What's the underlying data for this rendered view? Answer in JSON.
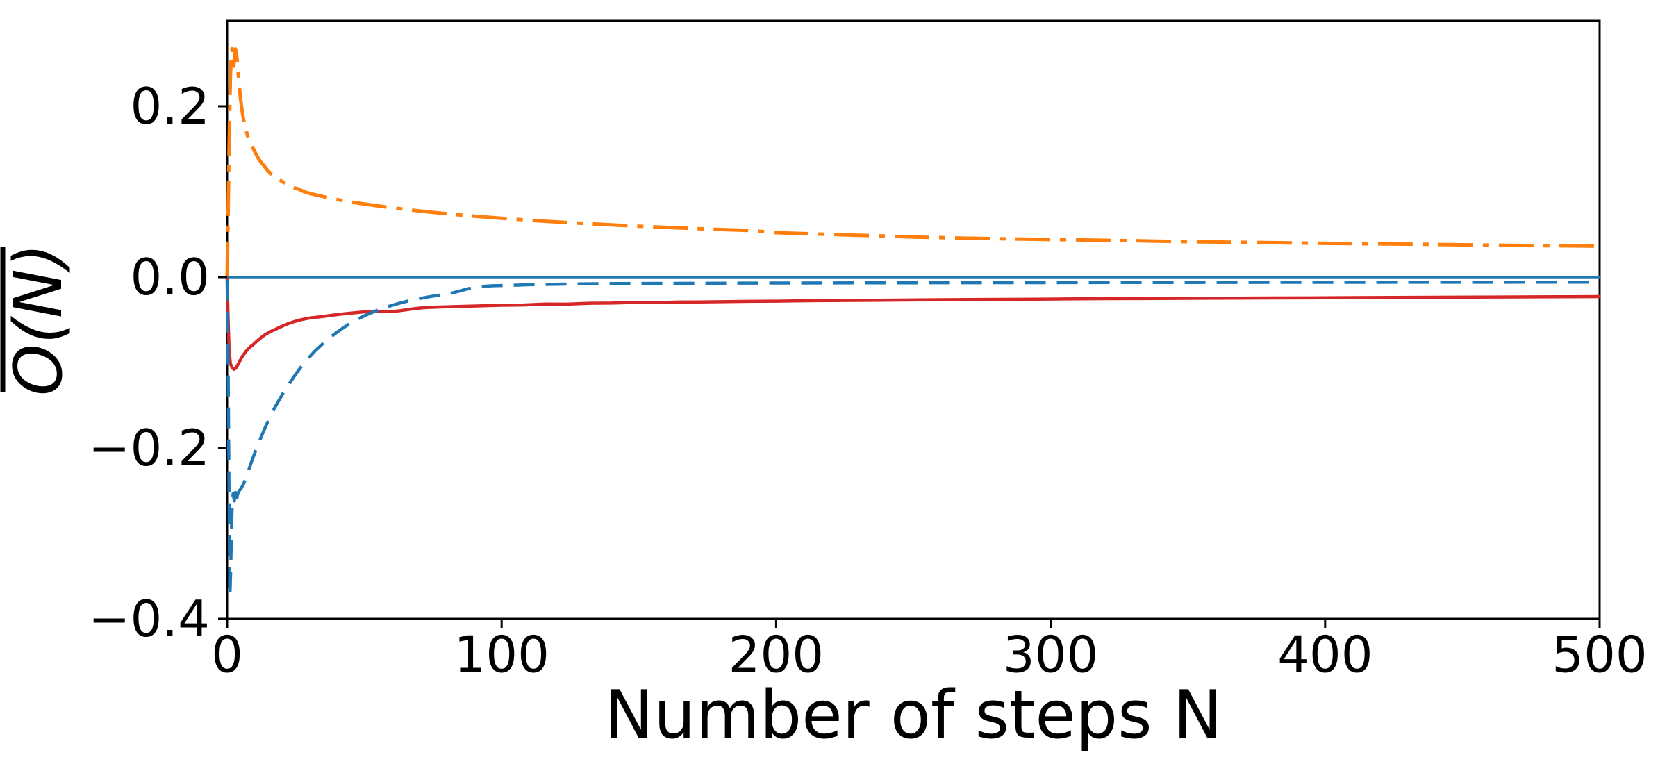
{
  "chart_data": {
    "type": "line",
    "title": "",
    "xlabel": "Number of steps N",
    "ylabel": "O(N)",
    "ylabel_overline": true,
    "xlim": [
      0,
      500
    ],
    "ylim": [
      -0.4,
      0.3
    ],
    "grid": false,
    "legend": "none",
    "background_color": "#ffffff",
    "axis_color": "#000000",
    "x_ticks": [
      {
        "value": 0,
        "label": "0"
      },
      {
        "value": 100,
        "label": "100"
      },
      {
        "value": 200,
        "label": "200"
      },
      {
        "value": 300,
        "label": "300"
      },
      {
        "value": 400,
        "label": "400"
      },
      {
        "value": 500,
        "label": "500"
      }
    ],
    "y_ticks": [
      {
        "value": 0.2,
        "label": "0.2"
      },
      {
        "value": 0.0,
        "label": "0.0"
      },
      {
        "value": -0.2,
        "label": "−0.2"
      },
      {
        "value": -0.4,
        "label": "−0.4"
      }
    ],
    "series": [
      {
        "name": "zero-reference-line",
        "color": "#1f77b4",
        "linestyle": "solid",
        "linewidth": 3.5,
        "points": [
          [
            0,
            0.0
          ],
          [
            500,
            0.0
          ]
        ]
      },
      {
        "name": "orange-dashdot-curve",
        "color": "#ff7f0e",
        "linestyle": "dashdot",
        "linewidth": 5,
        "points": [
          [
            0,
            0.001
          ],
          [
            0.3,
            0.06
          ],
          [
            0.6,
            0.13
          ],
          [
            0.9,
            0.19
          ],
          [
            1.2,
            0.235
          ],
          [
            1.5,
            0.258
          ],
          [
            1.8,
            0.268
          ],
          [
            2.1,
            0.262
          ],
          [
            2.4,
            0.247
          ],
          [
            2.7,
            0.258
          ],
          [
            3.0,
            0.267
          ],
          [
            3.3,
            0.265
          ],
          [
            3.6,
            0.256
          ],
          [
            4.0,
            0.24
          ],
          [
            4.4,
            0.225
          ],
          [
            4.8,
            0.211
          ],
          [
            5.2,
            0.2
          ],
          [
            5.6,
            0.192
          ],
          [
            6.0,
            0.184
          ],
          [
            6.6,
            0.176
          ],
          [
            7.2,
            0.168
          ],
          [
            7.8,
            0.162
          ],
          [
            8.4,
            0.158
          ],
          [
            9.0,
            0.153
          ],
          [
            9.6,
            0.15
          ],
          [
            10.2,
            0.146
          ],
          [
            11,
            0.141
          ],
          [
            12,
            0.136
          ],
          [
            13,
            0.132
          ],
          [
            14,
            0.128
          ],
          [
            15,
            0.124
          ],
          [
            16,
            0.121
          ],
          [
            17,
            0.119
          ],
          [
            18,
            0.116
          ],
          [
            19,
            0.114
          ],
          [
            20,
            0.112
          ],
          [
            22,
            0.108
          ],
          [
            24,
            0.105
          ],
          [
            26,
            0.103
          ],
          [
            28,
            0.1
          ],
          [
            30,
            0.098
          ],
          [
            33,
            0.0958
          ],
          [
            36,
            0.0935
          ],
          [
            39,
            0.0915
          ],
          [
            42,
            0.0897
          ],
          [
            45,
            0.088
          ],
          [
            48,
            0.0865
          ],
          [
            52,
            0.0846
          ],
          [
            56,
            0.0829
          ],
          [
            60,
            0.0812
          ],
          [
            65,
            0.0793
          ],
          [
            70,
            0.0775
          ],
          [
            75,
            0.0758
          ],
          [
            80,
            0.0742
          ],
          [
            85,
            0.0728
          ],
          [
            90,
            0.0714
          ],
          [
            95,
            0.0701
          ],
          [
            100,
            0.0689
          ],
          [
            108,
            0.0671
          ],
          [
            116,
            0.0654
          ],
          [
            124,
            0.0639
          ],
          [
            132,
            0.0625
          ],
          [
            140,
            0.0611
          ],
          [
            150,
            0.0596
          ],
          [
            160,
            0.0582
          ],
          [
            170,
            0.0569
          ],
          [
            180,
            0.0557
          ],
          [
            190,
            0.0546
          ],
          [
            200,
            0.052
          ],
          [
            215,
            0.0505
          ],
          [
            230,
            0.049
          ],
          [
            250,
            0.047
          ],
          [
            270,
            0.0455
          ],
          [
            290,
            0.0445
          ],
          [
            310,
            0.0436
          ],
          [
            330,
            0.0426
          ],
          [
            350,
            0.0415
          ],
          [
            370,
            0.0407
          ],
          [
            390,
            0.0399
          ],
          [
            410,
            0.0392
          ],
          [
            430,
            0.0386
          ],
          [
            450,
            0.0378
          ],
          [
            470,
            0.0371
          ],
          [
            485,
            0.0367
          ],
          [
            500,
            0.0363
          ]
        ]
      },
      {
        "name": "red-solid-curve",
        "color": "#d62728",
        "linestyle": "solid",
        "linewidth": 4.5,
        "points": [
          [
            0,
            -0.001
          ],
          [
            0.3,
            -0.04
          ],
          [
            0.7,
            -0.085
          ],
          [
            1.2,
            -0.101
          ],
          [
            1.8,
            -0.106
          ],
          [
            2.5,
            -0.108
          ],
          [
            3.2,
            -0.1065
          ],
          [
            4,
            -0.102
          ],
          [
            4.8,
            -0.097
          ],
          [
            5.6,
            -0.0925
          ],
          [
            6.5,
            -0.0885
          ],
          [
            7.5,
            -0.0845
          ],
          [
            8.5,
            -0.0815
          ],
          [
            9.5,
            -0.079
          ],
          [
            11,
            -0.0745
          ],
          [
            12.5,
            -0.0705
          ],
          [
            14,
            -0.067
          ],
          [
            16,
            -0.0635
          ],
          [
            18,
            -0.0605
          ],
          [
            20,
            -0.0575
          ],
          [
            22,
            -0.0548
          ],
          [
            24,
            -0.0525
          ],
          [
            26,
            -0.0506
          ],
          [
            28,
            -0.0491
          ],
          [
            30,
            -0.0479
          ],
          [
            33,
            -0.0468
          ],
          [
            36,
            -0.0456
          ],
          [
            39,
            -0.0443
          ],
          [
            42,
            -0.0432
          ],
          [
            45,
            -0.0422
          ],
          [
            48,
            -0.0412
          ],
          [
            51,
            -0.0404
          ],
          [
            54,
            -0.0398
          ],
          [
            56,
            -0.0401
          ],
          [
            58,
            -0.0406
          ],
          [
            60,
            -0.0403
          ],
          [
            63,
            -0.0393
          ],
          [
            66,
            -0.0379
          ],
          [
            69,
            -0.0366
          ],
          [
            72,
            -0.0357
          ],
          [
            76,
            -0.0351
          ],
          [
            80,
            -0.0347
          ],
          [
            85,
            -0.0342
          ],
          [
            90,
            -0.0338
          ],
          [
            95,
            -0.0333
          ],
          [
            100,
            -0.0329
          ],
          [
            108,
            -0.0326
          ],
          [
            116,
            -0.0315
          ],
          [
            124,
            -0.0316
          ],
          [
            132,
            -0.0306
          ],
          [
            140,
            -0.0304
          ],
          [
            148,
            -0.0297
          ],
          [
            156,
            -0.0299
          ],
          [
            164,
            -0.0292
          ],
          [
            172,
            -0.029
          ],
          [
            180,
            -0.0288
          ],
          [
            190,
            -0.0284
          ],
          [
            200,
            -0.0281
          ],
          [
            215,
            -0.0276
          ],
          [
            230,
            -0.0272
          ],
          [
            245,
            -0.0268
          ],
          [
            260,
            -0.0264
          ],
          [
            275,
            -0.0261
          ],
          [
            290,
            -0.0259
          ],
          [
            305,
            -0.0255
          ],
          [
            320,
            -0.0252
          ],
          [
            335,
            -0.0251
          ],
          [
            350,
            -0.0248
          ],
          [
            365,
            -0.0246
          ],
          [
            380,
            -0.0244
          ],
          [
            395,
            -0.0243
          ],
          [
            410,
            -0.024
          ],
          [
            425,
            -0.0238
          ],
          [
            440,
            -0.0236
          ],
          [
            455,
            -0.0234
          ],
          [
            470,
            -0.0232
          ],
          [
            485,
            -0.023
          ],
          [
            500,
            -0.0228
          ]
        ]
      },
      {
        "name": "blue-dashed-curve",
        "color": "#1f77b4",
        "linestyle": "dashed",
        "linewidth": 4.5,
        "points": [
          [
            0,
            -0.003
          ],
          [
            0.4,
            -0.12
          ],
          [
            0.8,
            -0.3
          ],
          [
            1.0,
            -0.373
          ],
          [
            1.3,
            -0.345
          ],
          [
            1.6,
            -0.295
          ],
          [
            1.9,
            -0.262
          ],
          [
            2.2,
            -0.253
          ],
          [
            2.6,
            -0.262
          ],
          [
            3.0,
            -0.252
          ],
          [
            3.4,
            -0.263
          ],
          [
            3.8,
            -0.254
          ],
          [
            4.4,
            -0.25
          ],
          [
            5,
            -0.248
          ],
          [
            6,
            -0.242
          ],
          [
            7,
            -0.234
          ],
          [
            8,
            -0.2245
          ],
          [
            9,
            -0.215
          ],
          [
            10,
            -0.2065
          ],
          [
            11,
            -0.198
          ],
          [
            12,
            -0.19
          ],
          [
            13,
            -0.1825
          ],
          [
            14,
            -0.175
          ],
          [
            15,
            -0.168
          ],
          [
            16,
            -0.1615
          ],
          [
            17,
            -0.155
          ],
          [
            18,
            -0.149
          ],
          [
            19,
            -0.1435
          ],
          [
            20,
            -0.138
          ],
          [
            21,
            -0.133
          ],
          [
            22,
            -0.128
          ],
          [
            23.5,
            -0.1205
          ],
          [
            25,
            -0.1135
          ],
          [
            26.5,
            -0.107
          ],
          [
            28,
            -0.101
          ],
          [
            30,
            -0.0935
          ],
          [
            32,
            -0.0865
          ],
          [
            34,
            -0.0805
          ],
          [
            36,
            -0.0745
          ],
          [
            38,
            -0.0695
          ],
          [
            40,
            -0.0645
          ],
          [
            42,
            -0.06
          ],
          [
            44,
            -0.0558
          ],
          [
            46,
            -0.052
          ],
          [
            48,
            -0.0485
          ],
          [
            50,
            -0.0453
          ],
          [
            52,
            -0.0424
          ],
          [
            54,
            -0.0398
          ],
          [
            56,
            -0.0374
          ],
          [
            58,
            -0.0352
          ],
          [
            60,
            -0.0331
          ],
          [
            62,
            -0.0312
          ],
          [
            64,
            -0.0295
          ],
          [
            66,
            -0.0279
          ],
          [
            68,
            -0.0264
          ],
          [
            70,
            -0.0251
          ],
          [
            73,
            -0.0233
          ],
          [
            76,
            -0.0217
          ],
          [
            79,
            -0.0203
          ],
          [
            82,
            -0.0185
          ],
          [
            85,
            -0.016
          ],
          [
            88,
            -0.0135
          ],
          [
            91,
            -0.0118
          ],
          [
            94,
            -0.0106
          ],
          [
            97,
            -0.0101
          ],
          [
            100,
            -0.0098
          ],
          [
            105,
            -0.0094
          ],
          [
            110,
            -0.0089
          ],
          [
            115,
            -0.0086
          ],
          [
            120,
            -0.0083
          ],
          [
            128,
            -0.008
          ],
          [
            136,
            -0.0077
          ],
          [
            144,
            -0.0075
          ],
          [
            152,
            -0.0074
          ],
          [
            162,
            -0.0073
          ],
          [
            172,
            -0.0072
          ],
          [
            182,
            -0.0071
          ],
          [
            192,
            -0.007
          ],
          [
            205,
            -0.0069
          ],
          [
            220,
            -0.0068
          ],
          [
            235,
            -0.0067
          ],
          [
            250,
            -0.0067
          ],
          [
            270,
            -0.0066
          ],
          [
            290,
            -0.0065
          ],
          [
            310,
            -0.0064
          ],
          [
            330,
            -0.0063
          ],
          [
            350,
            -0.0063
          ],
          [
            370,
            -0.0062
          ],
          [
            390,
            -0.0061
          ],
          [
            410,
            -0.0061
          ],
          [
            430,
            -0.006
          ],
          [
            450,
            -0.006
          ],
          [
            470,
            -0.0059
          ],
          [
            485,
            -0.0059
          ],
          [
            500,
            -0.0059
          ]
        ]
      }
    ]
  }
}
